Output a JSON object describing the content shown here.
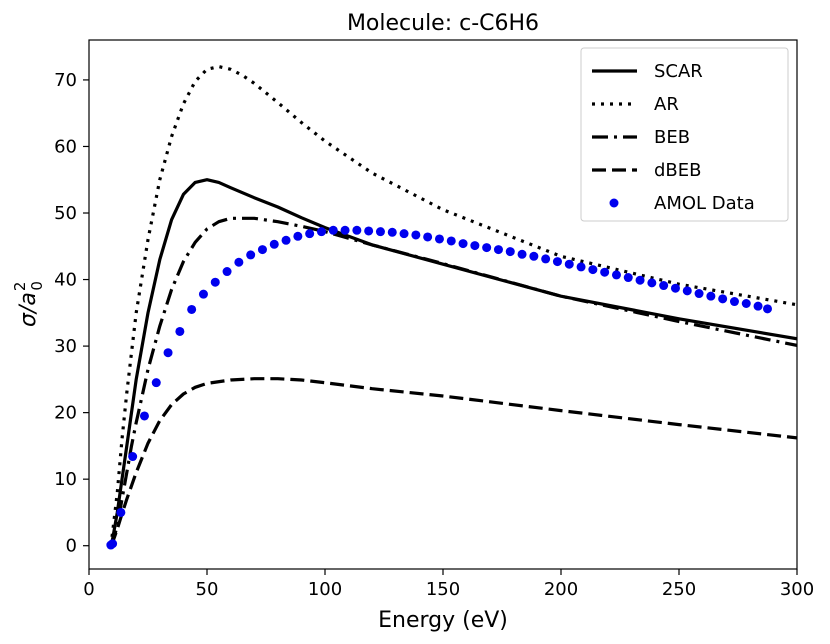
{
  "chart_data": {
    "type": "line",
    "title": "Molecule: c-C6H6",
    "xlabel": "Energy (eV)",
    "ylabel": {
      "base": "σ/a",
      "sup": "2",
      "sub": "0"
    },
    "xlim": [
      0,
      300
    ],
    "ylim": [
      -3.5,
      76
    ],
    "xticks": [
      0,
      50,
      100,
      150,
      200,
      250,
      300
    ],
    "yticks": [
      0,
      10,
      20,
      30,
      40,
      50,
      60,
      70
    ],
    "grid": false,
    "legend_position": "top-right",
    "series": [
      {
        "name": "SCAR",
        "style": "solid",
        "color": "#000000",
        "x": [
          9.25,
          10,
          12,
          14,
          16,
          18,
          20,
          25,
          30,
          35,
          40,
          45,
          50,
          55,
          60,
          70,
          80,
          90,
          100,
          120,
          150,
          200,
          250,
          300
        ],
        "y": [
          0,
          1,
          5,
          10,
          15,
          20,
          25,
          35,
          43,
          49,
          52.8,
          54.6,
          55,
          54.6,
          53.8,
          52.3,
          50.9,
          49.3,
          47.8,
          45.2,
          42.3,
          37.5,
          34.1,
          31.1
        ]
      },
      {
        "name": "AR",
        "style": "dotted",
        "color": "#000000",
        "x": [
          9.25,
          10,
          12,
          14,
          16,
          18,
          20,
          25,
          30,
          35,
          40,
          45,
          50,
          55,
          60,
          65,
          70,
          80,
          90,
          100,
          120,
          150,
          200,
          250,
          300
        ],
        "y": [
          0,
          2,
          8,
          16,
          23,
          29,
          35,
          46,
          55,
          61.5,
          66.4,
          69.8,
          71.6,
          72,
          71.6,
          70.7,
          69.5,
          66.6,
          63.6,
          60.8,
          56,
          50.5,
          43.5,
          39.3,
          36.2
        ]
      },
      {
        "name": "BEB",
        "style": "dashdot",
        "color": "#000000",
        "x": [
          9.25,
          10,
          12,
          14,
          16,
          18,
          20,
          25,
          30,
          35,
          40,
          45,
          50,
          55,
          60,
          70,
          80,
          90,
          100,
          120,
          150,
          200,
          250,
          300
        ],
        "y": [
          0,
          0.5,
          3,
          7,
          11,
          15,
          18.5,
          26.5,
          33,
          38.5,
          42.7,
          45.6,
          47.6,
          48.7,
          49.2,
          49.2,
          48.7,
          48,
          47.2,
          45.2,
          42.4,
          37.5,
          33.7,
          30.1
        ]
      },
      {
        "name": "dBEB",
        "style": "dashed",
        "color": "#000000",
        "x": [
          9.25,
          10,
          12,
          14,
          16,
          18,
          20,
          25,
          30,
          35,
          40,
          45,
          50,
          60,
          70,
          80,
          90,
          100,
          120,
          150,
          200,
          250,
          300
        ],
        "y": [
          0,
          0.5,
          2.5,
          4.8,
          7,
          9,
          11,
          15.4,
          18.8,
          21.2,
          22.8,
          23.8,
          24.4,
          24.9,
          25.1,
          25.1,
          24.9,
          24.5,
          23.6,
          22.5,
          20.3,
          18.2,
          16.2
        ]
      },
      {
        "name": "AMOL Data",
        "style": "markers",
        "color": "#0000ee",
        "x": [
          9.25,
          10,
          13.5,
          18.5,
          23.5,
          28.5,
          33.5,
          38.5,
          43.5,
          48.5,
          53.5,
          58.5,
          63.5,
          68.5,
          73.5,
          78.5,
          83.5,
          88.5,
          93.5,
          98.5,
          103.5,
          108.5,
          113.5,
          118.5,
          123.5,
          128.5,
          133.5,
          138.5,
          143.5,
          148.5,
          153.5,
          158.5,
          163.5,
          168.5,
          173.5,
          178.5,
          183.5,
          188.5,
          193.5,
          198.5,
          203.5,
          208.5,
          213.5,
          218.5,
          223.5,
          228.5,
          233.5,
          238.5,
          243.5,
          248.5,
          253.5,
          258.5,
          263.5,
          268.5,
          273.5,
          278.5,
          283.5,
          287.5
        ],
        "y": [
          0.1,
          0.3,
          5,
          13.4,
          19.5,
          24.5,
          29,
          32.2,
          35.5,
          37.8,
          39.6,
          41.2,
          42.6,
          43.7,
          44.5,
          45.3,
          45.9,
          46.5,
          46.9,
          47.2,
          47.4,
          47.4,
          47.4,
          47.3,
          47.2,
          47.1,
          46.9,
          46.7,
          46.4,
          46.1,
          45.8,
          45.4,
          45.1,
          44.8,
          44.5,
          44.2,
          43.8,
          43.5,
          43.1,
          42.7,
          42.3,
          41.9,
          41.5,
          41.1,
          40.7,
          40.3,
          39.9,
          39.5,
          39.1,
          38.7,
          38.3,
          37.9,
          37.5,
          37.1,
          36.7,
          36.4,
          36,
          35.6
        ]
      }
    ]
  }
}
